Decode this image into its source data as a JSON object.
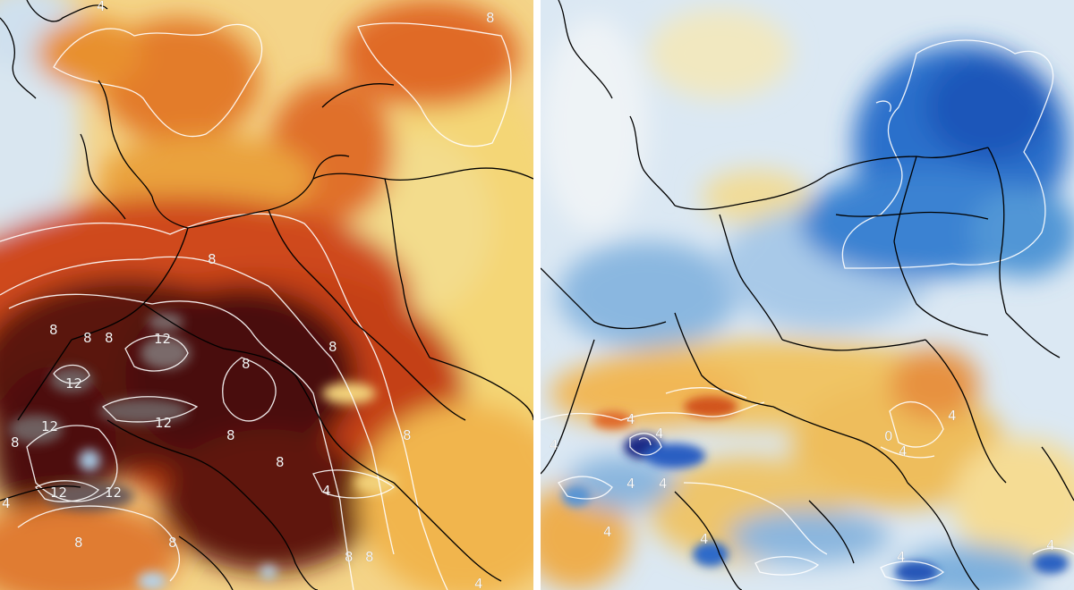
{
  "left_panel": {
    "labels": [
      {
        "text": "4"
      },
      {
        "text": "8"
      },
      {
        "text": "8"
      },
      {
        "text": "8"
      },
      {
        "text": "8"
      },
      {
        "text": "8"
      },
      {
        "text": "8"
      },
      {
        "text": "12"
      },
      {
        "text": "12"
      },
      {
        "text": "12"
      },
      {
        "text": "12"
      },
      {
        "text": "12"
      },
      {
        "text": "12"
      },
      {
        "text": "8"
      },
      {
        "text": "8"
      },
      {
        "text": "8"
      },
      {
        "text": "8"
      },
      {
        "text": "4"
      },
      {
        "text": "8"
      },
      {
        "text": "8"
      },
      {
        "text": "8"
      },
      {
        "text": "4"
      },
      {
        "text": "4"
      },
      {
        "text": "8"
      },
      {
        "text": "8"
      }
    ],
    "colors": {
      "pale": "#f6e7b0",
      "yellow": "#f2c25a",
      "orange": "#ea8a2f",
      "red_orange": "#d2501d",
      "dark_red": "#8c1d12",
      "very_dark": "#3a0c08",
      "grey_core": "#6b5a5a",
      "blue": "#9cc4e4",
      "contour": "#ffffff",
      "border": "#000000"
    }
  },
  "right_panel": {
    "labels": [
      {
        "text": "4"
      },
      {
        "text": "4"
      },
      {
        "text": "4"
      },
      {
        "text": "4"
      },
      {
        "text": "4"
      },
      {
        "text": "4"
      },
      {
        "text": "4"
      },
      {
        "text": "0"
      },
      {
        "text": "4"
      },
      {
        "text": "4"
      },
      {
        "text": "4"
      },
      {
        "text": "4"
      }
    ],
    "colors": {
      "light_blue": "#cfe2f2",
      "mid_blue": "#8cbbe3",
      "blue": "#3c84d0",
      "deep_blue": "#1c55b8",
      "navy": "#1a2a7a",
      "pale": "#f4e3b0",
      "yellow": "#f0be55",
      "orange": "#e8903a",
      "red_orange": "#d2551f",
      "contour": "#ffffff",
      "border": "#000000"
    }
  }
}
